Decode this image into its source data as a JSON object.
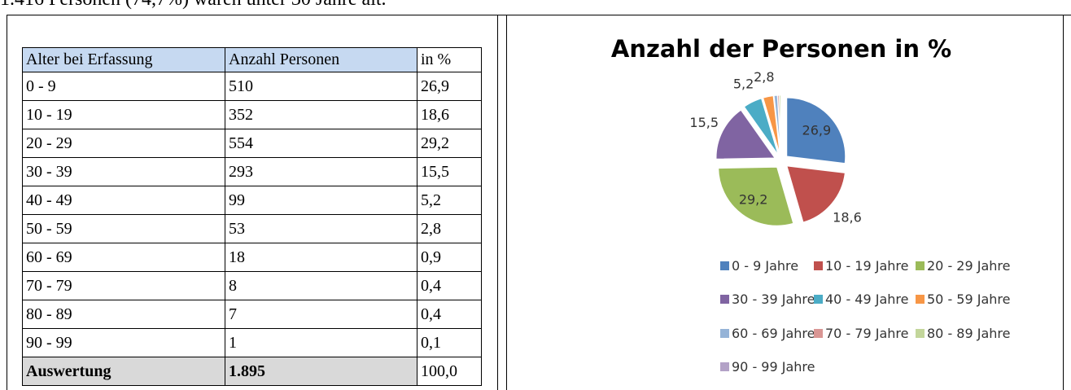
{
  "intro": "1.416 Personen (74,7%) waren unter 30 Jahre alt.",
  "table": {
    "header": [
      "Alter bei Erfassung",
      "Anzahl Personen",
      "in %"
    ],
    "rows": [
      [
        "0 - 9",
        "510",
        "26,9"
      ],
      [
        "10 - 19",
        "352",
        "18,6"
      ],
      [
        "20 - 29",
        "554",
        "29,2"
      ],
      [
        "30 - 39",
        "293",
        "15,5"
      ],
      [
        "40 - 49",
        "99",
        "5,2"
      ],
      [
        "50 - 59",
        "53",
        "2,8"
      ],
      [
        "60 - 69",
        "18",
        "0,9"
      ],
      [
        "70 - 79",
        "8",
        "0,4"
      ],
      [
        "80 - 89",
        "7",
        "0,4"
      ],
      [
        "90 - 99",
        "1",
        "0,1"
      ]
    ],
    "total": [
      "Auswertung",
      "1.895",
      "100,0"
    ]
  },
  "chart_data": {
    "type": "pie",
    "title": "Anzahl der Personen in %",
    "categories": [
      "0 - 9 Jahre",
      "10 - 19 Jahre",
      "20 - 29 Jahre",
      "30 - 39 Jahre",
      "40 - 49 Jahre",
      "50 - 59 Jahre",
      "60 - 69 Jahre",
      "70 - 79 Jahre",
      "80 - 89 Jahre",
      "90 - 99 Jahre"
    ],
    "values": [
      26.9,
      18.6,
      29.2,
      15.5,
      5.2,
      2.8,
      0.9,
      0.4,
      0.4,
      0.1
    ],
    "value_labels": [
      "26,9",
      "18,6",
      "29,2",
      "15,5",
      "5,2",
      "2,8",
      null,
      null,
      null,
      null
    ],
    "colors": [
      "#4F81BD",
      "#C0504D",
      "#9BBB59",
      "#8064A2",
      "#4BACC6",
      "#F79646",
      "#95B3D7",
      "#D99694",
      "#C3D69B",
      "#B3A2C7"
    ],
    "legend": "bottom"
  }
}
